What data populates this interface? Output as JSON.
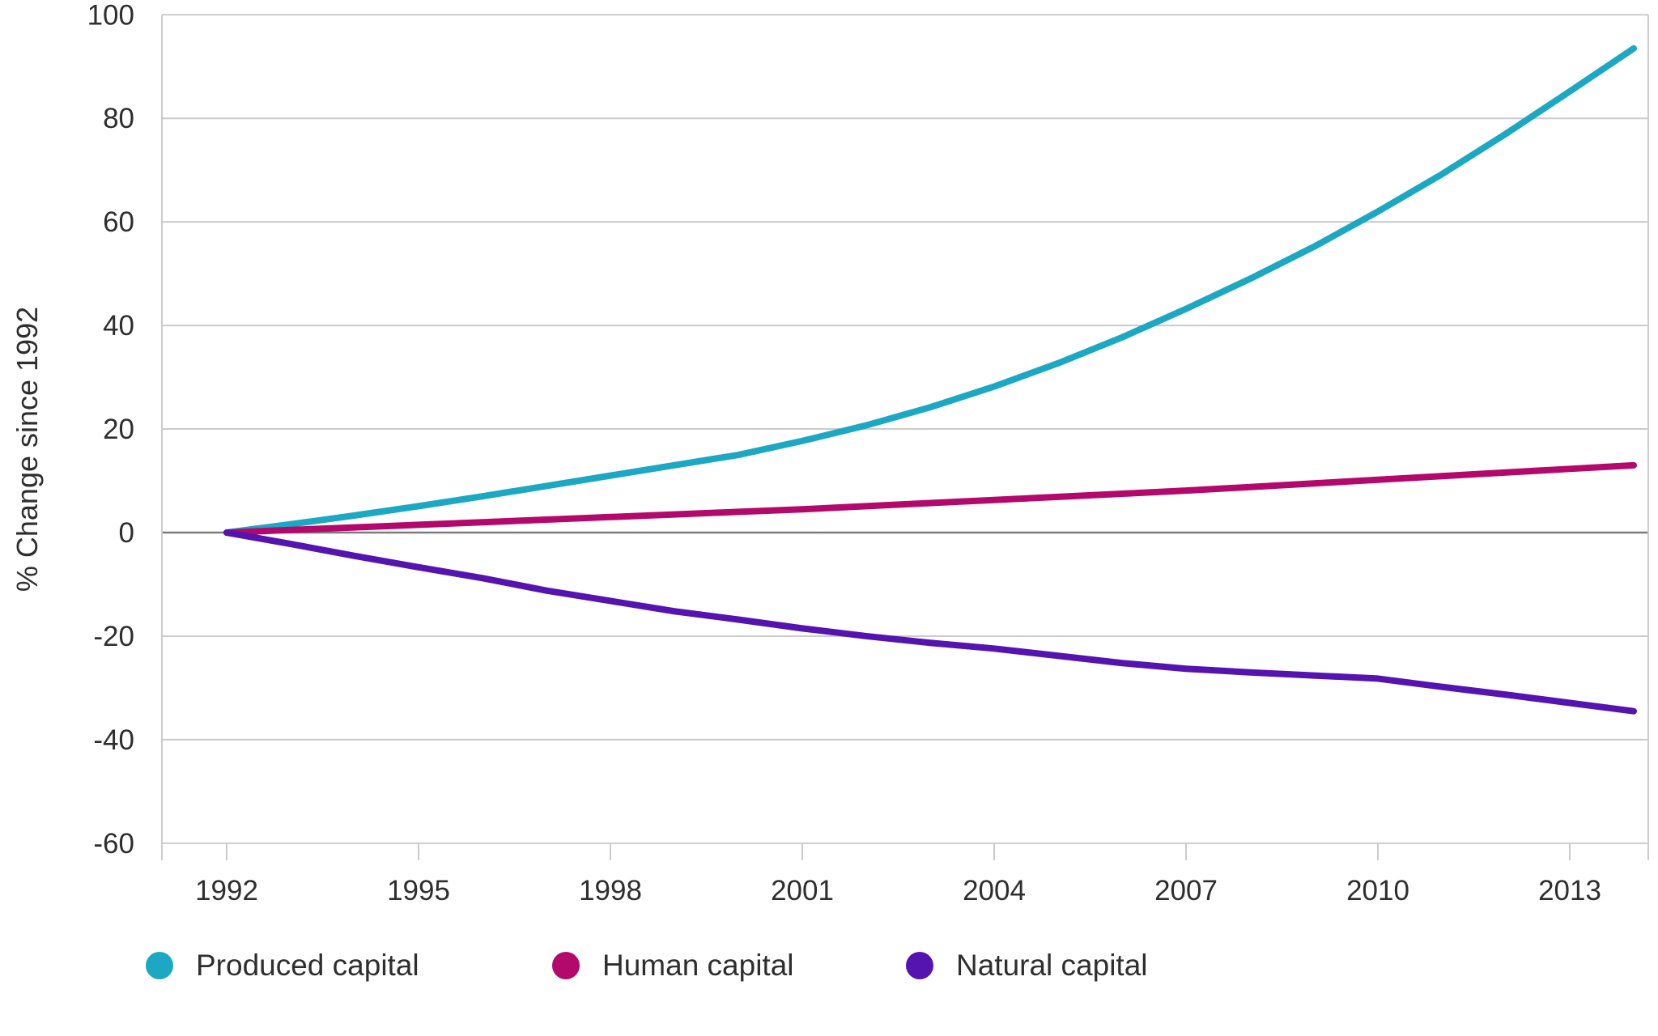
{
  "chart_data": {
    "type": "line",
    "title": "",
    "xlabel": "",
    "ylabel": "% Change since 1992",
    "grid": "horizontal",
    "legend_position": "bottom",
    "ylim": [
      -60,
      100
    ],
    "xlim": [
      1991,
      2014.25
    ],
    "y_ticks": [
      -60,
      -40,
      -20,
      0,
      20,
      40,
      60,
      80,
      100
    ],
    "x_ticks": [
      1992,
      1995,
      1998,
      2001,
      2004,
      2007,
      2010,
      2013
    ],
    "x_tick_labels": [
      "1992",
      "1995",
      "1998",
      "2001",
      "2004",
      "2007",
      "2010",
      "2013"
    ],
    "x": [
      1992,
      1993,
      1994,
      1995,
      1996,
      1997,
      1998,
      1999,
      2000,
      2001,
      2002,
      2003,
      2004,
      2005,
      2006,
      2007,
      2008,
      2009,
      2010,
      2011,
      2012,
      2013,
      2014
    ],
    "series": [
      {
        "name": "Produced capital",
        "color": "#1CA8C2",
        "values": [
          0,
          1.6,
          3.3,
          5.1,
          7.0,
          9.0,
          11.0,
          13.0,
          15.0,
          17.7,
          20.7,
          24.2,
          28.2,
          32.7,
          37.7,
          43.2,
          49.0,
          55.2,
          62.0,
          69.2,
          77.0,
          85.2,
          93.5
        ]
      },
      {
        "name": "Human capital",
        "color": "#B3086C",
        "values": [
          0,
          0.5,
          1.0,
          1.5,
          2.0,
          2.5,
          3.0,
          3.5,
          4.0,
          4.5,
          5.1,
          5.7,
          6.3,
          6.9,
          7.5,
          8.1,
          8.8,
          9.5,
          10.2,
          10.9,
          11.6,
          12.3,
          13.0
        ]
      },
      {
        "name": "Natural capital",
        "color": "#5513AF",
        "values": [
          0,
          -2.2,
          -4.5,
          -6.7,
          -8.8,
          -11.2,
          -13.2,
          -15.2,
          -16.8,
          -18.5,
          -20.0,
          -21.3,
          -22.4,
          -23.8,
          -25.2,
          -26.3,
          -27.0,
          -27.6,
          -28.2,
          -29.8,
          -31.3,
          -32.9,
          -34.5
        ]
      }
    ],
    "style": {
      "grid_color": "#CBCBCB",
      "zero_line_color": "#7C7C7C",
      "tick_label_color": "#2E2E2E",
      "background": "#FFFFFF"
    }
  }
}
